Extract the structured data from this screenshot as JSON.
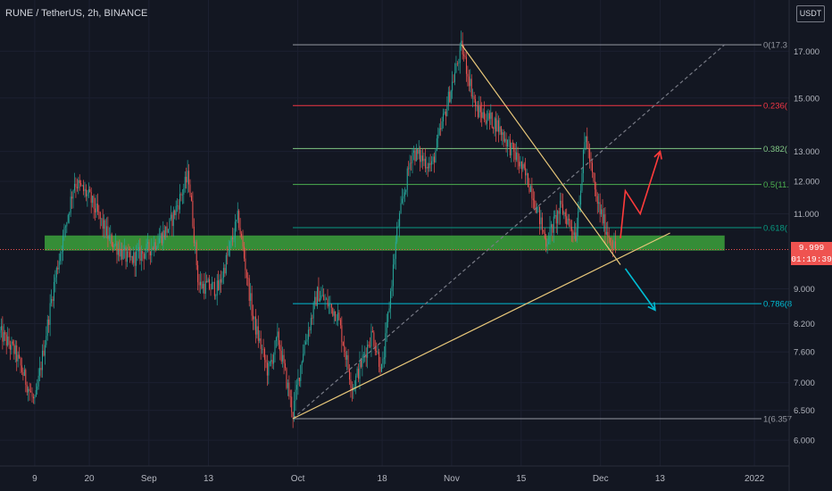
{
  "header": {
    "symbol_line": "RUNE / TetherUS, 2h, BINANCE",
    "currency_button": "USDT"
  },
  "price_marker": {
    "value": "9.999",
    "countdown": "01:19:39",
    "price": 9.999,
    "color": "#ef5350"
  },
  "colors": {
    "background": "#131722",
    "up_candle": "#26a69a",
    "down_candle": "#ef5350",
    "support_zone": "#3a9a3a",
    "trendline": "#e8c77a",
    "projection_up": "#ff3b3b",
    "projection_down": "#00bcd4"
  },
  "chart_data": {
    "type": "candlestick",
    "title": "RUNE / TetherUS, 2h, BINANCE",
    "y_scale": "log",
    "ylim": [
      5.6,
      19.5
    ],
    "y_ticks": [
      {
        "label": "17.000",
        "value": 17.0
      },
      {
        "label": "15.000",
        "value": 15.0
      },
      {
        "label": "13.000",
        "value": 13.0
      },
      {
        "label": "12.000",
        "value": 12.0
      },
      {
        "label": "11.000",
        "value": 11.0
      },
      {
        "label": "9.000",
        "value": 9.0
      },
      {
        "label": "8.200",
        "value": 8.2
      },
      {
        "label": "7.600",
        "value": 7.6
      },
      {
        "label": "7.000",
        "value": 7.0
      },
      {
        "label": "6.500",
        "value": 6.5
      },
      {
        "label": "6.000",
        "value": 6.0
      }
    ],
    "x_range": [
      "2021-08-02",
      "2022-01-08"
    ],
    "x_ticks": [
      {
        "label": "9",
        "date": "2021-08-09"
      },
      {
        "label": "20",
        "date": "2021-08-20"
      },
      {
        "label": "Sep",
        "date": "2021-09-01"
      },
      {
        "label": "13",
        "date": "2021-09-13"
      },
      {
        "label": "Oct",
        "date": "2021-10-01"
      },
      {
        "label": "18",
        "date": "2021-10-18"
      },
      {
        "label": "Nov",
        "date": "2021-11-01"
      },
      {
        "label": "15",
        "date": "2021-11-15"
      },
      {
        "label": "Dec",
        "date": "2021-12-01"
      },
      {
        "label": "13",
        "date": "2021-12-13"
      },
      {
        "label": "2022",
        "date": "2022-01-01"
      }
    ],
    "price_path": [
      {
        "date": "2021-08-02",
        "price": 8.0
      },
      {
        "date": "2021-08-05",
        "price": 7.6
      },
      {
        "date": "2021-08-09",
        "price": 6.6
      },
      {
        "date": "2021-08-13",
        "price": 9.2
      },
      {
        "date": "2021-08-17",
        "price": 12.0
      },
      {
        "date": "2021-08-20",
        "price": 11.5
      },
      {
        "date": "2021-08-24",
        "price": 10.3
      },
      {
        "date": "2021-08-28",
        "price": 9.7
      },
      {
        "date": "2021-09-01",
        "price": 10.0
      },
      {
        "date": "2021-09-05",
        "price": 10.6
      },
      {
        "date": "2021-09-09",
        "price": 12.2
      },
      {
        "date": "2021-09-11",
        "price": 9.1
      },
      {
        "date": "2021-09-15",
        "price": 9.0
      },
      {
        "date": "2021-09-19",
        "price": 10.9
      },
      {
        "date": "2021-09-22",
        "price": 8.3
      },
      {
        "date": "2021-09-25",
        "price": 7.2
      },
      {
        "date": "2021-09-27",
        "price": 7.9
      },
      {
        "date": "2021-09-30",
        "price": 6.45
      },
      {
        "date": "2021-10-02",
        "price": 7.6
      },
      {
        "date": "2021-10-05",
        "price": 8.9
      },
      {
        "date": "2021-10-09",
        "price": 8.4
      },
      {
        "date": "2021-10-12",
        "price": 6.9
      },
      {
        "date": "2021-10-16",
        "price": 8.0
      },
      {
        "date": "2021-10-18",
        "price": 7.2
      },
      {
        "date": "2021-10-21",
        "price": 10.5
      },
      {
        "date": "2021-10-24",
        "price": 13.0
      },
      {
        "date": "2021-10-28",
        "price": 12.5
      },
      {
        "date": "2021-11-01",
        "price": 15.5
      },
      {
        "date": "2021-11-03",
        "price": 17.2
      },
      {
        "date": "2021-11-06",
        "price": 14.5
      },
      {
        "date": "2021-11-10",
        "price": 14.0
      },
      {
        "date": "2021-11-14",
        "price": 12.8
      },
      {
        "date": "2021-11-17",
        "price": 11.8
      },
      {
        "date": "2021-11-20",
        "price": 10.2
      },
      {
        "date": "2021-11-23",
        "price": 11.2
      },
      {
        "date": "2021-11-26",
        "price": 10.4
      },
      {
        "date": "2021-11-28",
        "price": 13.6
      },
      {
        "date": "2021-11-30",
        "price": 11.5
      },
      {
        "date": "2021-12-02",
        "price": 10.6
      },
      {
        "date": "2021-12-04",
        "price": 9.999
      }
    ],
    "fib_levels": [
      {
        "label": "0(17.3",
        "price": 17.3,
        "color": "#9598a1"
      },
      {
        "label": "0.236(",
        "price": 14.7,
        "color": "#f23645"
      },
      {
        "label": "0.382(",
        "price": 13.1,
        "color": "#81c784"
      },
      {
        "label": "0.5(11.",
        "price": 11.9,
        "color": "#4caf50"
      },
      {
        "label": "0.618(",
        "price": 10.6,
        "color": "#089981"
      },
      {
        "label": "0.786(8",
        "price": 8.65,
        "color": "#00bcd4"
      },
      {
        "label": "1(6.357",
        "price": 6.357,
        "color": "#9598a1"
      }
    ],
    "support_zone": {
      "from": "2021-08-11",
      "to": "2021-12-26",
      "low": 9.97,
      "high": 10.38
    },
    "drawings": {
      "fib_anchor_diagonal": [
        {
          "date": "2021-09-30",
          "price": 6.357
        },
        {
          "date": "2021-12-26",
          "price": 17.3
        }
      ],
      "rising_trendline": [
        {
          "date": "2021-09-30",
          "price": 6.357
        },
        {
          "date": "2021-12-15",
          "price": 10.45
        }
      ],
      "falling_trendline": [
        {
          "date": "2021-11-03",
          "price": 17.3
        },
        {
          "date": "2021-12-05",
          "price": 9.6
        }
      ],
      "bullish_projection": [
        {
          "date": "2021-12-05",
          "price": 10.3
        },
        {
          "date": "2021-12-06",
          "price": 11.7
        },
        {
          "date": "2021-12-09",
          "price": 11.0
        },
        {
          "date": "2021-12-13",
          "price": 13.0
        }
      ],
      "bearish_projection": [
        {
          "date": "2021-12-06",
          "price": 9.5
        },
        {
          "date": "2021-12-12",
          "price": 8.5
        }
      ]
    }
  }
}
